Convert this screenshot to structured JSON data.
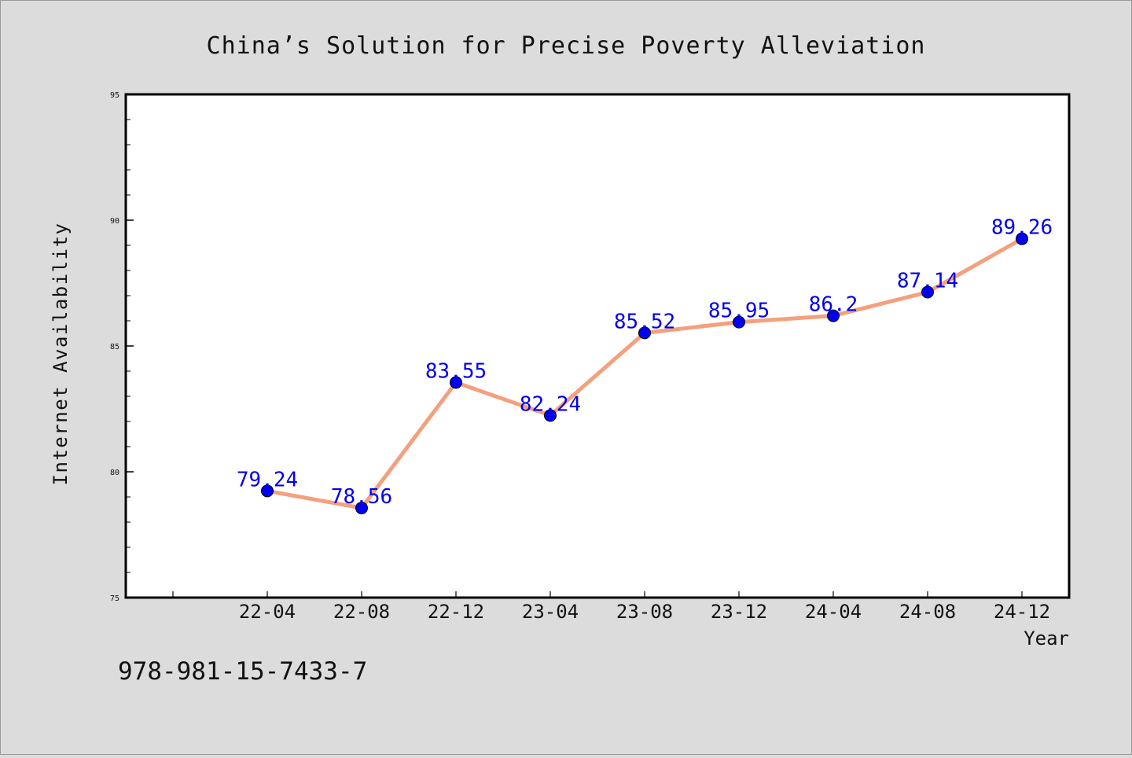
{
  "chart_data": {
    "type": "line",
    "title": "China’s Solution for Precise Poverty Alleviation",
    "xlabel": "Year",
    "ylabel": "Internet Availability",
    "categories": [
      "22-04",
      "22-08",
      "22-12",
      "23-04",
      "23-08",
      "23-12",
      "24-04",
      "24-08",
      "24-12"
    ],
    "series": [
      {
        "values": [
          79.24,
          78.56,
          83.55,
          82.24,
          85.52,
          85.95,
          86.2,
          87.14,
          89.26
        ],
        "value_labels": [
          "79.24",
          "78.56",
          "83.55",
          "82.24",
          "85.52",
          "85.95",
          "86.2",
          "87.14",
          "89.26"
        ],
        "line_color": "#f4a07e",
        "marker_color": "#0000ee"
      }
    ],
    "ylim": [
      75,
      95
    ],
    "y_ticks": [
      75,
      80,
      85,
      90,
      95
    ],
    "y_tick_labels": [
      "75",
      "80",
      "85",
      "90",
      "95"
    ],
    "grid": false,
    "legend": "none",
    "label_color": "#0000ee"
  },
  "footer": {
    "isbn": "978-981-15-7433-7"
  }
}
